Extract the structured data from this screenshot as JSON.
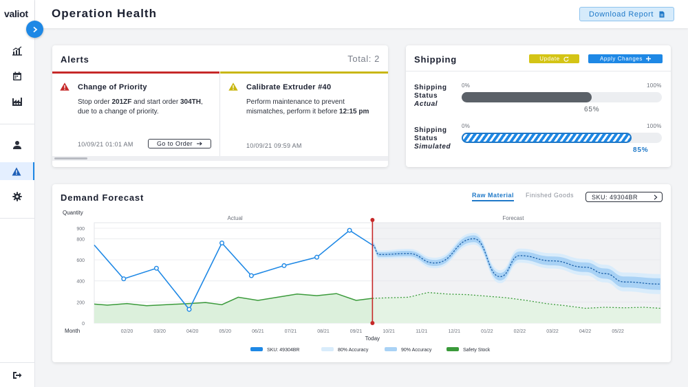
{
  "app": {
    "logo": "valiot"
  },
  "header": {
    "title": "Operation Health",
    "download_label": "Download Report"
  },
  "sidebar": {
    "items": [
      {
        "name": "dashboard-icon"
      },
      {
        "name": "calendar-icon"
      },
      {
        "name": "factory-icon"
      },
      {
        "name": "user-icon"
      },
      {
        "name": "alert-icon",
        "active": true
      },
      {
        "name": "gear-icon"
      },
      {
        "name": "logout-icon"
      }
    ]
  },
  "alerts": {
    "title": "Alerts",
    "total": "Total: 2",
    "items": [
      {
        "severity": "critical",
        "color": "#c62828",
        "title": "Change of Priority",
        "body_pre": "Stop order ",
        "body_b1": "201ZF",
        "body_mid": " and start order ",
        "body_b2": "304TH",
        "body_post": ",",
        "body_line2": "due to a change of priority.",
        "time": "10/09/21 01:01 AM",
        "action": "Go to Order"
      },
      {
        "severity": "warning",
        "color": "#c8b60f",
        "title": "Calibrate Extruder #40",
        "body_line1": "Perform maintenance to prevent",
        "body_pre2": "mismatches, perform it before ",
        "body_b": "12:15 pm",
        "time": "10/09/21 09:59 AM"
      }
    ]
  },
  "shipping": {
    "title": "Shipping",
    "update_label": "Update",
    "apply_label": "Apply Changes",
    "scale_min": "0%",
    "scale_max": "100%",
    "actual": {
      "line1": "Shipping",
      "line2": "Status",
      "line3": "Actual",
      "value": 0.65,
      "pct_label": "65%"
    },
    "simulated": {
      "line1": "Shipping",
      "line2": "Status",
      "line3": "Simulated",
      "value": 0.85,
      "pct_label": "85%"
    }
  },
  "forecast": {
    "title": "Demand Forecast",
    "tabs": [
      {
        "label": "Raw Material",
        "active": true
      },
      {
        "label": "Finished Goods",
        "active": false
      }
    ],
    "sku_label": "SKU: 49304BR"
  },
  "colors": {
    "accent": "#1e88e5",
    "critical": "#c62828",
    "warning": "#c8b60f",
    "safety": "#3a9a3a",
    "today_line": "#c62828"
  },
  "chart_data": {
    "type": "line",
    "ylabel": "Quantity",
    "xlabel": "Month",
    "ylim": [
      0,
      900
    ],
    "yticks": [
      0,
      200,
      400,
      600,
      800,
      900
    ],
    "region_labels": {
      "actual": "Actual",
      "forecast": "Forecast"
    },
    "today_label": "Today",
    "today_x": 8.5,
    "xtick_labels": [
      {
        "x": 1,
        "label": "02/20"
      },
      {
        "x": 2,
        "label": "03/20"
      },
      {
        "x": 3,
        "label": "04/20"
      },
      {
        "x": 4,
        "label": "05/20"
      },
      {
        "x": 5,
        "label": "06/21"
      },
      {
        "x": 6,
        "label": "07/21"
      },
      {
        "x": 7,
        "label": "08/21"
      },
      {
        "x": 8,
        "label": "09/21"
      },
      {
        "x": 9,
        "label": "10/21"
      },
      {
        "x": 10,
        "label": "11/21"
      },
      {
        "x": 11,
        "label": "12/21"
      },
      {
        "x": 12,
        "label": "01/22"
      },
      {
        "x": 13,
        "label": "02/22"
      },
      {
        "x": 14,
        "label": "03/22"
      },
      {
        "x": 15,
        "label": "04/22"
      },
      {
        "x": 16,
        "label": "05/22"
      }
    ],
    "series": [
      {
        "name": "SKU: 49304BR",
        "color": "#1e88e5",
        "actual": [
          [
            0,
            740
          ],
          [
            0.9,
            420
          ],
          [
            1.9,
            520
          ],
          [
            2.9,
            130
          ],
          [
            3.9,
            760
          ],
          [
            4.8,
            450
          ],
          [
            5.8,
            545
          ],
          [
            6.8,
            625
          ],
          [
            7.8,
            880
          ],
          [
            8.5,
            740
          ]
        ],
        "forecast": [
          [
            8.5,
            740
          ],
          [
            8.7,
            650
          ],
          [
            9.6,
            660
          ],
          [
            10.4,
            570
          ],
          [
            11.6,
            800
          ],
          [
            12.4,
            440
          ],
          [
            13.0,
            640
          ],
          [
            14.0,
            590
          ],
          [
            15.0,
            530
          ],
          [
            15.6,
            470
          ],
          [
            16.2,
            390
          ],
          [
            17.3,
            370
          ]
        ]
      },
      {
        "name": "80% Accuracy",
        "color": "#d9ecfb",
        "band_halfwidth": 95
      },
      {
        "name": "90% Accuracy",
        "color": "#a9d2f5",
        "band_halfwidth": 55
      },
      {
        "name": "Safety Stock",
        "color": "#3a9a3a",
        "actual": [
          [
            0,
            180
          ],
          [
            0.4,
            170
          ],
          [
            1,
            185
          ],
          [
            1.6,
            165
          ],
          [
            2.2,
            175
          ],
          [
            2.9,
            185
          ],
          [
            3.4,
            195
          ],
          [
            3.9,
            175
          ],
          [
            4.4,
            245
          ],
          [
            5,
            215
          ],
          [
            5.6,
            245
          ],
          [
            6.2,
            275
          ],
          [
            6.8,
            260
          ],
          [
            7.4,
            280
          ],
          [
            8,
            215
          ],
          [
            8.5,
            235
          ]
        ],
        "forecast": [
          [
            8.5,
            235
          ],
          [
            9.0,
            240
          ],
          [
            9.6,
            245
          ],
          [
            10.2,
            290
          ],
          [
            10.8,
            275
          ],
          [
            11.4,
            270
          ],
          [
            12.0,
            255
          ],
          [
            12.6,
            240
          ],
          [
            13.2,
            215
          ],
          [
            13.8,
            185
          ],
          [
            14.4,
            165
          ],
          [
            15.0,
            140
          ],
          [
            15.6,
            150
          ],
          [
            16.2,
            145
          ],
          [
            16.8,
            150
          ],
          [
            17.3,
            140
          ]
        ]
      }
    ],
    "legend": [
      {
        "name": "SKU: 49304BR",
        "color": "#1e88e5"
      },
      {
        "name": "80% Accuracy",
        "color": "#d9ecfb"
      },
      {
        "name": "90% Accuracy",
        "color": "#a9d2f5"
      },
      {
        "name": "Safety Stock",
        "color": "#3a9a3a"
      }
    ],
    "legend_position": "bottom"
  }
}
